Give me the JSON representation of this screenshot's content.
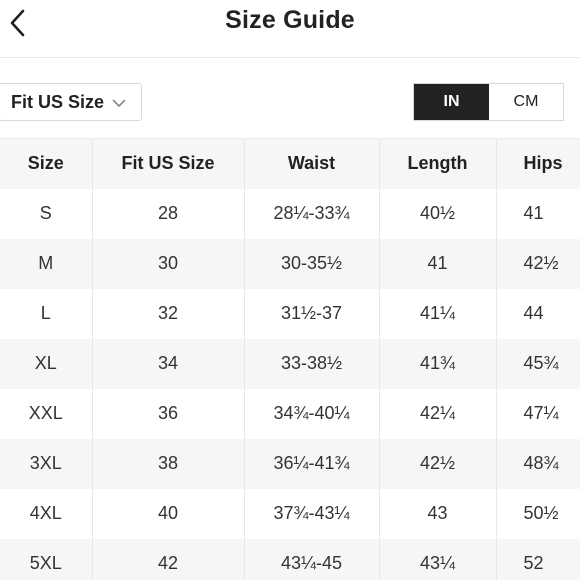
{
  "header": {
    "title": "Size Guide"
  },
  "toolbar": {
    "size_select_label": "Fit US Size",
    "units": [
      {
        "label": "IN",
        "selected": true
      },
      {
        "label": "CM",
        "selected": false
      }
    ]
  },
  "table": {
    "columns": [
      "Size",
      "Fit US Size",
      "Waist",
      "Length",
      "Hips"
    ],
    "rows": [
      [
        "S",
        "28",
        "28¼-33¾",
        "40½",
        "41"
      ],
      [
        "M",
        "30",
        "30-35½",
        "41",
        "42½"
      ],
      [
        "L",
        "32",
        "31½-37",
        "41¼",
        "44"
      ],
      [
        "XL",
        "34",
        "33-38½",
        "41¾",
        "45¾"
      ],
      [
        "XXL",
        "36",
        "34¾-40¼",
        "42¼",
        "47¼"
      ],
      [
        "3XL",
        "38",
        "36¼-41¾",
        "42½",
        "48¾"
      ],
      [
        "4XL",
        "40",
        "37¾-43¼",
        "43",
        "50½"
      ],
      [
        "5XL",
        "42",
        "43¼-45",
        "43¼",
        "52"
      ]
    ]
  },
  "colors": {
    "accent": "#222222",
    "header_row_bg": "#f6f6f6",
    "divider": "#e6e6e6"
  },
  "icons": {
    "back": "chevron-left-icon",
    "dropdown": "chevron-down-icon"
  }
}
